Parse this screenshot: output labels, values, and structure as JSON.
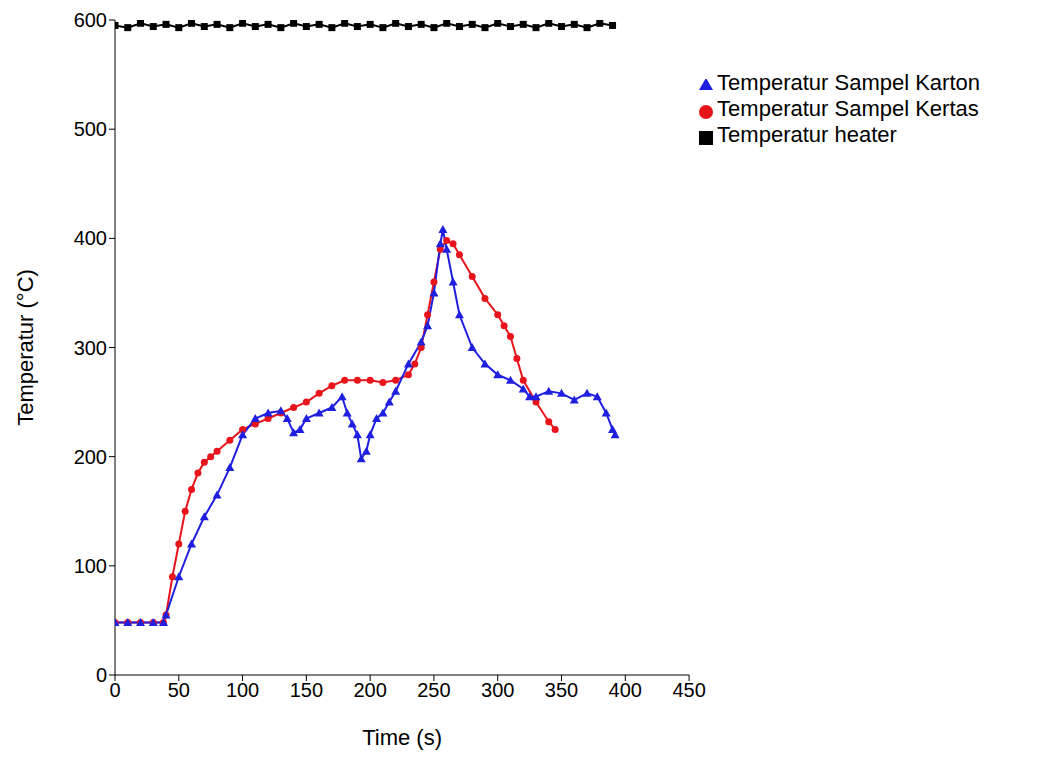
{
  "chart_data": {
    "type": "line",
    "x_label": "Time (s)",
    "y_label": "Temperatur (°C)",
    "xlim": [
      0,
      450
    ],
    "xticks": [
      0,
      50,
      100,
      150,
      200,
      250,
      300,
      350,
      400,
      450
    ],
    "ylim": [
      0,
      600
    ],
    "yticks": [
      0,
      100,
      200,
      300,
      400,
      500,
      600
    ],
    "grid": false,
    "legend": "upper right",
    "series": [
      {
        "name": "Temperatur heater",
        "color": "#000000",
        "marker": "square",
        "x": [
          0,
          10,
          20,
          30,
          40,
          50,
          60,
          70,
          80,
          90,
          100,
          110,
          120,
          130,
          140,
          150,
          160,
          170,
          180,
          190,
          200,
          210,
          220,
          230,
          240,
          250,
          260,
          270,
          280,
          290,
          300,
          310,
          320,
          330,
          340,
          350,
          360,
          370,
          380,
          390
        ],
        "values": [
          595,
          593,
          597,
          594,
          596,
          593,
          597,
          594,
          596,
          593,
          597,
          594,
          596,
          593,
          597,
          594,
          596,
          593,
          597,
          594,
          596,
          593,
          597,
          594,
          596,
          593,
          597,
          594,
          596,
          593,
          597,
          594,
          596,
          593,
          597,
          594,
          596,
          593,
          597,
          595
        ]
      },
      {
        "name": "Temperatur Sampel Kertas",
        "color": "#e8141c",
        "marker": "circle",
        "x": [
          0,
          10,
          20,
          30,
          38,
          40,
          45,
          50,
          55,
          60,
          65,
          70,
          75,
          80,
          90,
          100,
          110,
          120,
          130,
          140,
          150,
          160,
          170,
          180,
          190,
          200,
          210,
          220,
          230,
          235,
          240,
          245,
          250,
          255,
          260,
          265,
          270,
          280,
          290,
          300,
          305,
          310,
          315,
          320,
          330,
          340,
          345
        ],
        "values": [
          48,
          48,
          48,
          48,
          48,
          55,
          90,
          120,
          150,
          170,
          185,
          195,
          200,
          205,
          215,
          225,
          230,
          235,
          240,
          245,
          250,
          258,
          265,
          270,
          270,
          270,
          268,
          270,
          275,
          285,
          300,
          330,
          360,
          390,
          398,
          395,
          385,
          365,
          345,
          330,
          320,
          310,
          290,
          270,
          250,
          232,
          225
        ]
      },
      {
        "name": "Temperatur Sampel Karton",
        "color": "#1f1fe0",
        "marker": "triangle",
        "x": [
          0,
          10,
          20,
          30,
          38,
          40,
          50,
          60,
          70,
          80,
          90,
          100,
          110,
          120,
          130,
          135,
          140,
          145,
          150,
          160,
          170,
          178,
          182,
          186,
          190,
          193,
          197,
          200,
          205,
          210,
          215,
          220,
          230,
          240,
          245,
          250,
          255,
          257,
          260,
          265,
          270,
          280,
          290,
          300,
          310,
          320,
          325,
          330,
          340,
          350,
          360,
          370,
          378,
          385,
          390,
          392
        ],
        "values": [
          48,
          48,
          48,
          48,
          48,
          55,
          90,
          120,
          145,
          165,
          190,
          220,
          235,
          240,
          242,
          235,
          222,
          225,
          235,
          240,
          245,
          255,
          240,
          230,
          220,
          198,
          205,
          220,
          235,
          240,
          250,
          260,
          285,
          305,
          320,
          350,
          395,
          408,
          390,
          360,
          330,
          300,
          285,
          275,
          270,
          262,
          255,
          255,
          260,
          258,
          252,
          258,
          255,
          240,
          225,
          220
        ]
      }
    ]
  }
}
